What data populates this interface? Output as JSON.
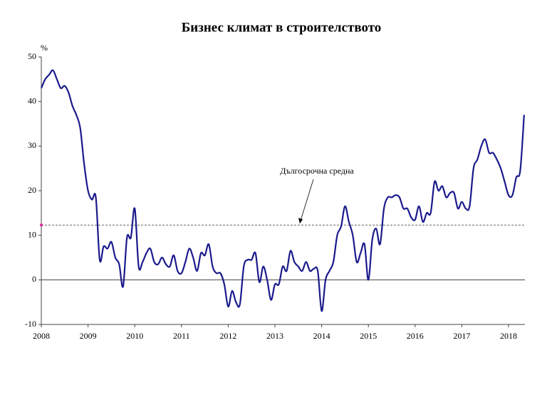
{
  "chart_data": {
    "type": "line",
    "title": "Бизнес климат в строителството",
    "y_unit": "%",
    "categories": [
      "2008",
      null,
      null,
      null,
      null,
      null,
      null,
      null,
      null,
      null,
      null,
      null,
      "2009",
      null,
      null,
      null,
      null,
      null,
      null,
      null,
      null,
      null,
      null,
      null,
      "2010",
      null,
      null,
      null,
      null,
      null,
      null,
      null,
      null,
      null,
      null,
      null,
      "2011",
      null,
      null,
      null,
      null,
      null,
      null,
      null,
      null,
      null,
      null,
      null,
      "2012",
      null,
      null,
      null,
      null,
      null,
      null,
      null,
      null,
      null,
      null,
      null,
      "2013",
      null,
      null,
      null,
      null,
      null,
      null,
      null,
      null,
      null,
      null,
      null,
      "2014",
      null,
      null,
      null,
      null,
      null,
      null,
      null,
      null,
      null,
      null,
      null,
      "2015",
      null,
      null,
      null,
      null,
      null,
      null,
      null,
      null,
      null,
      null,
      null,
      "2016",
      null,
      null,
      null,
      null,
      null,
      null,
      null,
      null,
      null,
      null,
      null,
      "2017",
      null,
      null,
      null,
      null,
      null,
      null,
      null,
      null,
      null,
      null,
      null,
      "2018",
      null,
      null,
      null,
      null
    ],
    "series": [
      {
        "color": "#1a1a8c",
        "values": [
          43,
          45,
          46,
          47,
          45,
          43,
          43.5,
          42,
          39,
          37,
          34,
          26,
          20,
          18,
          18.5,
          4.5,
          7.5,
          7,
          8.5,
          5,
          3.5,
          -1.5,
          9.5,
          9.5,
          16,
          3,
          4,
          6,
          7,
          4,
          3.5,
          5,
          3.5,
          3,
          5.5,
          2,
          1.5,
          4,
          7,
          5,
          2,
          6,
          5.5,
          8,
          3,
          1.5,
          1.5,
          -1,
          -6,
          -2.5,
          -5,
          -5.5,
          3,
          4.5,
          4.5,
          6,
          -0.5,
          3,
          0,
          -4.5,
          -1,
          -1,
          3,
          2,
          6.5,
          4,
          3,
          2,
          4,
          2,
          2.5,
          2,
          -7,
          0,
          2,
          4,
          10,
          12,
          16.5,
          13,
          10,
          4,
          6,
          8,
          0,
          9,
          11.5,
          8,
          16,
          18.5,
          18.5,
          19,
          18.5,
          16,
          16,
          14,
          13.5,
          16.5,
          13,
          15,
          15,
          22,
          20,
          21,
          18.5,
          19.5,
          19.5,
          16,
          17.5,
          16,
          16.5,
          25,
          27,
          30,
          31.5,
          28.5,
          28.5,
          27,
          25,
          22,
          19,
          19,
          23,
          24.5,
          37
        ]
      }
    ],
    "average": 12.3,
    "average_label": "Дългосрочна средна",
    "ylim": [
      -10,
      50
    ],
    "yticks": [
      -10,
      0,
      10,
      20,
      30,
      40,
      50
    ]
  }
}
